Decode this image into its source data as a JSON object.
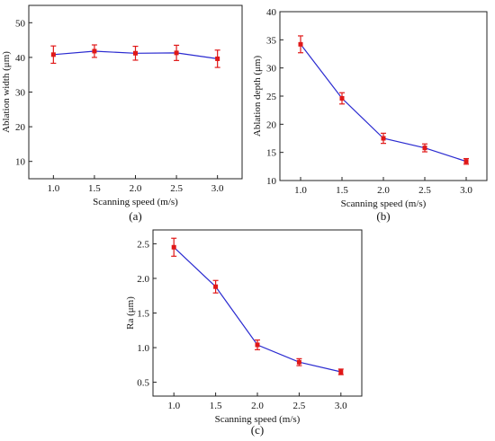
{
  "colors": {
    "line": "#2a2ad0",
    "marker": "#e01818",
    "error_bar": "#e01818",
    "axis": "#222222"
  },
  "chart_data": [
    {
      "type": "line",
      "panel_label": "(a)",
      "xlabel": "Scanning speed (m/s)",
      "ylabel": "Ablation width (μm)",
      "x": [
        1.0,
        1.5,
        2.0,
        2.5,
        3.0
      ],
      "xticks": [
        "1.0",
        "1.5",
        "2.0",
        "2.5",
        "3.0"
      ],
      "xlim": [
        0.7,
        3.3
      ],
      "yticks": [
        "10",
        "20",
        "30",
        "40",
        "50"
      ],
      "ylim": [
        5,
        55
      ],
      "series": [
        {
          "values": [
            40.8,
            41.8,
            41.2,
            41.3,
            39.6
          ],
          "errors": [
            2.5,
            1.8,
            2.0,
            2.2,
            2.5
          ]
        }
      ],
      "grid": false
    },
    {
      "type": "line",
      "panel_label": "(b)",
      "xlabel": "Scanning speed (m/s)",
      "ylabel": "Ablation depth (μm)",
      "x": [
        1.0,
        1.5,
        2.0,
        2.5,
        3.0
      ],
      "xticks": [
        "1.0",
        "1.5",
        "2.0",
        "2.5",
        "3.0"
      ],
      "xlim": [
        0.75,
        3.25
      ],
      "yticks": [
        "10",
        "15",
        "20",
        "25",
        "30",
        "35",
        "40"
      ],
      "ylim": [
        10,
        40
      ],
      "series": [
        {
          "values": [
            34.2,
            24.6,
            17.5,
            15.8,
            13.4
          ],
          "errors": [
            1.5,
            1.0,
            0.9,
            0.7,
            0.5
          ]
        }
      ],
      "grid": false
    },
    {
      "type": "line",
      "panel_label": "(c)",
      "xlabel": "Scanning speed (m/s)",
      "ylabel": "Ra (μm)",
      "x": [
        1.0,
        1.5,
        2.0,
        2.5,
        3.0
      ],
      "xticks": [
        "1.0",
        "1.5",
        "2.0",
        "2.5",
        "3.0"
      ],
      "xlim": [
        0.75,
        3.25
      ],
      "yticks": [
        "0.5",
        "1.0",
        "1.5",
        "2.0",
        "2.5"
      ],
      "ylim": [
        0.3,
        2.7
      ],
      "series": [
        {
          "values": [
            2.45,
            1.88,
            1.04,
            0.79,
            0.65
          ],
          "errors": [
            0.13,
            0.09,
            0.07,
            0.05,
            0.04
          ]
        }
      ],
      "grid": false
    }
  ]
}
